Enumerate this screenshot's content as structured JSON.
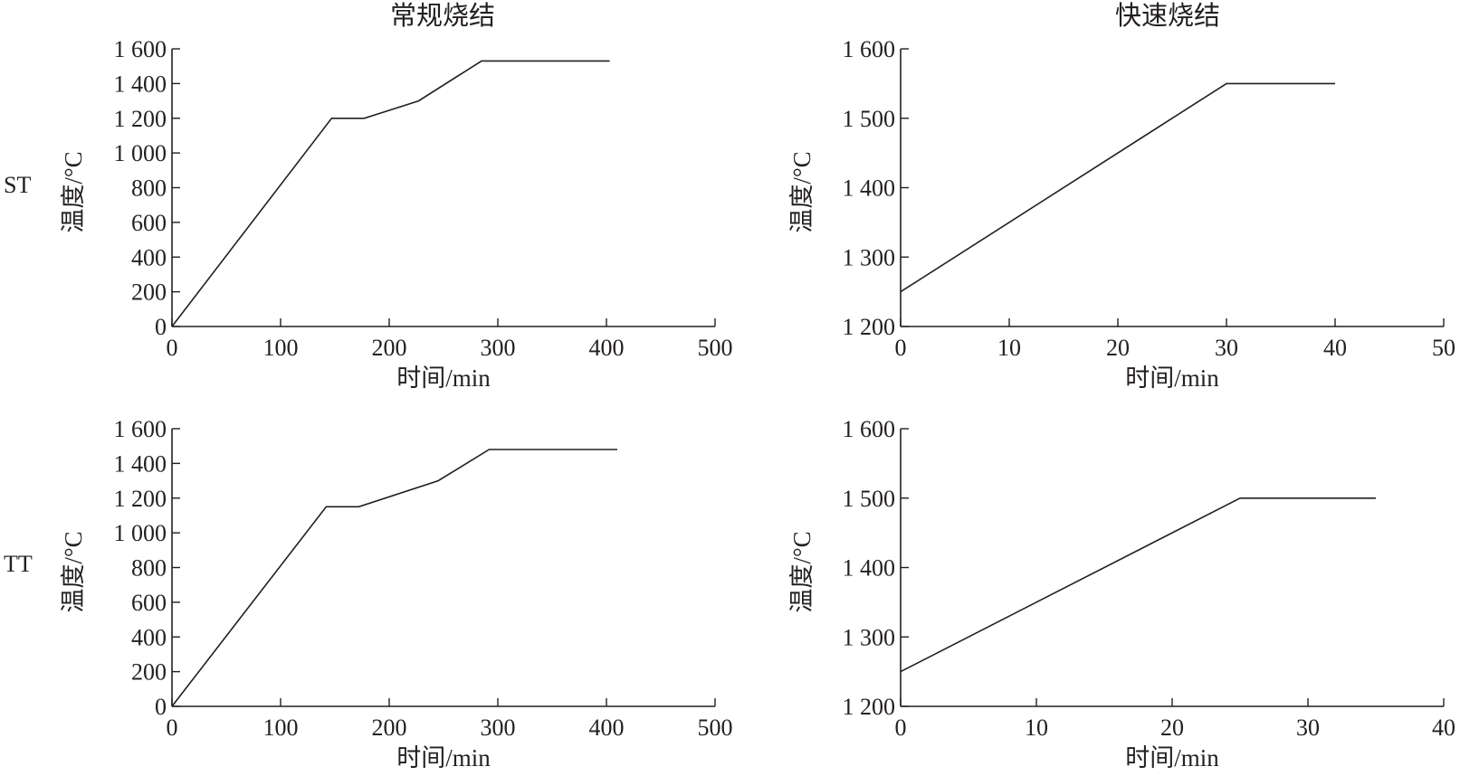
{
  "column_titles": [
    "常规烧结",
    "快速烧结"
  ],
  "row_labels": [
    "ST",
    "TT"
  ],
  "chart_data": [
    {
      "type": "line",
      "title": "常规烧结",
      "row_label": "ST",
      "xlabel": "时间/min",
      "ylabel": "温度/°C",
      "xlim": [
        0,
        500
      ],
      "ylim": [
        0,
        1600
      ],
      "x_ticks": [
        0,
        100,
        200,
        300,
        400,
        500
      ],
      "x_tick_labels": [
        "0",
        "100",
        "200",
        "300",
        "400",
        "500"
      ],
      "y_ticks": [
        0,
        200,
        400,
        600,
        800,
        1000,
        1200,
        1400,
        1600
      ],
      "y_tick_labels": [
        "0",
        "200",
        "400",
        "600",
        "800",
        "1 000",
        "1 200",
        "1 400",
        "1 600"
      ],
      "grid": false,
      "series": [
        {
          "x": [
            0,
            147,
            177,
            227,
            285,
            403
          ],
          "y": [
            0,
            1200,
            1200,
            1300,
            1530,
            1530
          ]
        }
      ]
    },
    {
      "type": "line",
      "title": "快速烧结",
      "row_label": "",
      "xlabel": "时间/min",
      "ylabel": "温度/°C",
      "xlim": [
        0,
        50
      ],
      "ylim": [
        1200,
        1600
      ],
      "x_ticks": [
        0,
        10,
        20,
        30,
        40,
        50
      ],
      "x_tick_labels": [
        "0",
        "10",
        "20",
        "30",
        "40",
        "50"
      ],
      "y_ticks": [
        1200,
        1300,
        1400,
        1500,
        1600
      ],
      "y_tick_labels": [
        "1 200",
        "1 300",
        "1 400",
        "1 500",
        "1 600"
      ],
      "grid": false,
      "series": [
        {
          "x": [
            0,
            30,
            40
          ],
          "y": [
            1250,
            1550,
            1550
          ]
        }
      ]
    },
    {
      "type": "line",
      "title": "",
      "row_label": "TT",
      "xlabel": "时间/min",
      "ylabel": "温度/°C",
      "xlim": [
        0,
        500
      ],
      "ylim": [
        0,
        1600
      ],
      "x_ticks": [
        0,
        100,
        200,
        300,
        400,
        500
      ],
      "x_tick_labels": [
        "0",
        "100",
        "200",
        "300",
        "400",
        "500"
      ],
      "y_ticks": [
        0,
        200,
        400,
        600,
        800,
        1000,
        1200,
        1400,
        1600
      ],
      "y_tick_labels": [
        "0",
        "200",
        "400",
        "600",
        "800",
        "1 000",
        "1 200",
        "1 400",
        "1 600"
      ],
      "grid": false,
      "series": [
        {
          "x": [
            0,
            142,
            172,
            245,
            292,
            410
          ],
          "y": [
            0,
            1150,
            1150,
            1300,
            1480,
            1480
          ]
        }
      ]
    },
    {
      "type": "line",
      "title": "",
      "row_label": "",
      "xlabel": "时间/min",
      "ylabel": "温度/°C",
      "xlim": [
        0,
        40
      ],
      "ylim": [
        1200,
        1600
      ],
      "x_ticks": [
        0,
        10,
        20,
        30,
        40
      ],
      "x_tick_labels": [
        "0",
        "10",
        "20",
        "30",
        "40"
      ],
      "y_ticks": [
        1200,
        1300,
        1400,
        1500,
        1600
      ],
      "y_tick_labels": [
        "1 200",
        "1 300",
        "1 400",
        "1 500",
        "1 600"
      ],
      "grid": false,
      "series": [
        {
          "x": [
            0,
            25,
            35
          ],
          "y": [
            1250,
            1500,
            1500
          ]
        }
      ]
    }
  ]
}
